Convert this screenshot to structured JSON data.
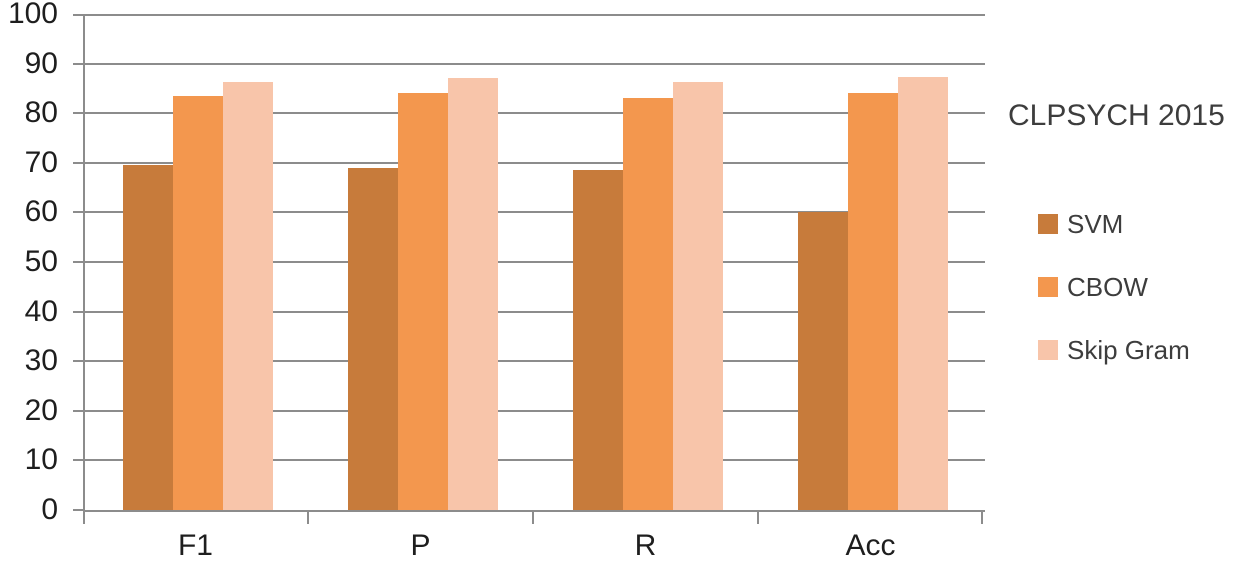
{
  "chart_data": {
    "type": "bar",
    "title": "CLPSYCH 2015",
    "categories": [
      "F1",
      "P",
      "R",
      "Acc"
    ],
    "series": [
      {
        "name": "SVM",
        "color": "#C77B3B",
        "values": [
          69.5,
          69.0,
          68.5,
          60.0
        ]
      },
      {
        "name": "CBOW",
        "color": "#F3974E",
        "values": [
          83.5,
          84.0,
          83.0,
          84.0
        ]
      },
      {
        "name": "Skip Gram",
        "color": "#F8C5AA",
        "values": [
          86.2,
          87.0,
          86.2,
          87.3
        ]
      }
    ],
    "ylabel": "",
    "xlabel": "",
    "ylim": [
      0,
      100
    ],
    "yticks": [
      0,
      10,
      20,
      30,
      40,
      50,
      60,
      70,
      80,
      90,
      100
    ],
    "grid": true,
    "legend_position": "right",
    "colors": {
      "axis": "#8C8C8C",
      "axis_text": "#1E1E1E",
      "legend_text": "#3D3D3D",
      "background": "#FFFFFF"
    }
  }
}
